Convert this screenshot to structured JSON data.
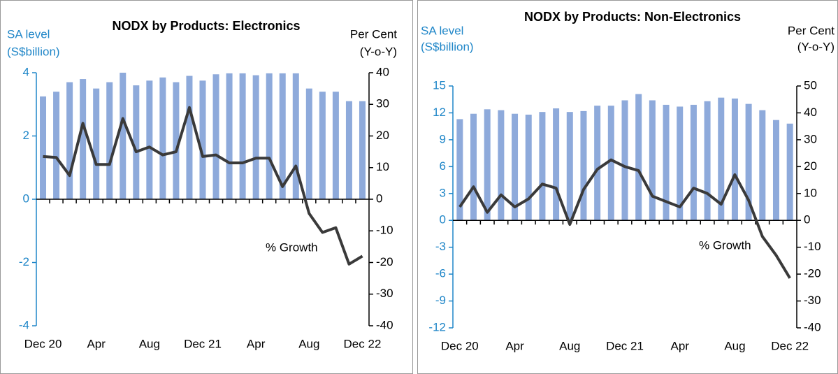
{
  "chart_data": [
    {
      "type": "bar_line",
      "title": "NODX by Products: Electronics",
      "y_label": [
        "SA level",
        "(S$billion)"
      ],
      "y2_label": [
        "Per Cent",
        "(Y-o-Y)"
      ],
      "annotation": "% Growth",
      "categories": [
        "Dec 20",
        null,
        null,
        null,
        "Apr",
        null,
        null,
        null,
        "Aug",
        null,
        null,
        null,
        "Dec 21",
        null,
        null,
        null,
        "Apr",
        null,
        null,
        null,
        "Aug",
        null,
        null,
        null,
        "Dec 22"
      ],
      "ylim": [
        -4,
        4
      ],
      "yticks": [
        -4,
        -2,
        0,
        2,
        4
      ],
      "y2lim": [
        -40,
        40
      ],
      "y2ticks": [
        -40,
        -30,
        -20,
        -10,
        0,
        10,
        20,
        30,
        40
      ],
      "series": [
        {
          "type": "bar",
          "axis": "y",
          "color": "#8eaadb",
          "values": [
            3.25,
            3.4,
            3.7,
            3.8,
            3.5,
            3.7,
            4.0,
            3.6,
            3.75,
            3.85,
            3.7,
            3.9,
            3.75,
            3.95,
            3.98,
            3.98,
            3.92,
            3.98,
            3.98,
            3.98,
            3.5,
            3.4,
            3.4,
            3.1,
            3.1
          ]
        },
        {
          "type": "line",
          "axis": "y2",
          "color": "#3a3a3a",
          "values": [
            13.5,
            13.2,
            7.5,
            24,
            11,
            11,
            25.5,
            15,
            16.5,
            14,
            15,
            29,
            13.5,
            14,
            11.5,
            11.5,
            13,
            13,
            4,
            10.5,
            -4.5,
            -10.5,
            -9,
            -20.5,
            -18
          ]
        }
      ]
    },
    {
      "type": "bar_line",
      "title": "NODX by Products: Non-Electronics",
      "y_label": [
        "SA level",
        "(S$billion)"
      ],
      "y2_label": [
        "Per Cent",
        "(Y-o-Y)"
      ],
      "annotation": "% Growth",
      "categories": [
        "Dec 20",
        null,
        null,
        null,
        "Apr",
        null,
        null,
        null,
        "Aug",
        null,
        null,
        null,
        "Dec 21",
        null,
        null,
        null,
        "Apr",
        null,
        null,
        null,
        "Aug",
        null,
        null,
        null,
        "Dec 22"
      ],
      "ylim": [
        -12,
        15
      ],
      "yticks": [
        -12,
        -9,
        -6,
        -3,
        0,
        3,
        6,
        9,
        12,
        15
      ],
      "y2lim": [
        -40,
        50
      ],
      "y2ticks": [
        -40,
        -30,
        -20,
        -10,
        0,
        10,
        20,
        30,
        40,
        50
      ],
      "series": [
        {
          "type": "bar",
          "axis": "y",
          "color": "#8eaadb",
          "values": [
            11.3,
            11.9,
            12.4,
            12.3,
            11.9,
            11.8,
            12.1,
            12.5,
            12.1,
            12.2,
            12.8,
            12.8,
            13.4,
            14.1,
            13.4,
            12.9,
            12.7,
            12.9,
            13.3,
            13.7,
            13.6,
            13.0,
            12.3,
            11.2,
            10.8
          ]
        },
        {
          "type": "line",
          "axis": "y2",
          "color": "#3a3a3a",
          "values": [
            5,
            12.5,
            3,
            9.5,
            5,
            8,
            13.5,
            12,
            -1.5,
            11.5,
            19,
            22.5,
            20,
            18.5,
            9,
            7,
            5,
            12,
            10,
            6,
            17,
            7.5,
            -6,
            -13,
            -21.5
          ]
        }
      ]
    }
  ]
}
